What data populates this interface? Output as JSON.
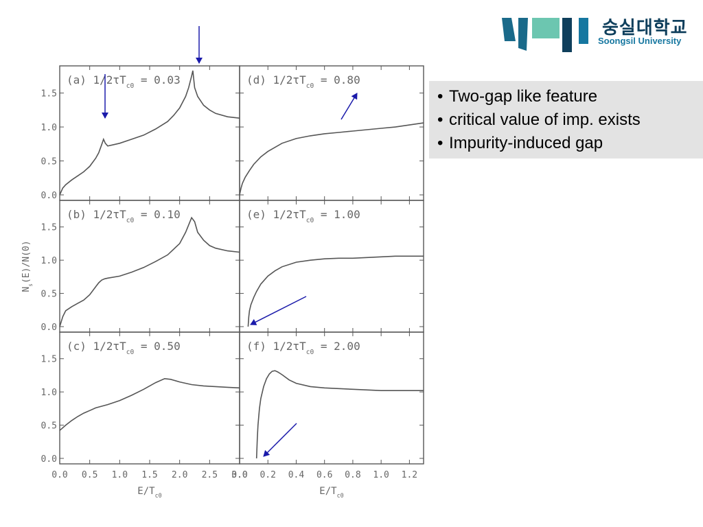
{
  "logo": {
    "name_korean": "숭실대학교",
    "name_english": "Soongsil University",
    "colors": {
      "dark": "#0f3f5c",
      "teal": "#1a6a8a",
      "mint": "#6cc6b0",
      "blue": "#1677a0"
    }
  },
  "bullets": [
    "Two-gap like feature",
    "critical value of imp. exists",
    "Impurity-induced gap"
  ],
  "colors": {
    "arrow": "#1a1aaa",
    "curve": "#555555",
    "bullet_box": "#e3e3e3"
  },
  "chart_data": {
    "type": "line",
    "ylabel": "N_s(E)/N(0)",
    "yticks": [
      "0.0",
      "0.5",
      "1.0",
      "1.5"
    ],
    "ylim": [
      0,
      1.9
    ],
    "left_column": {
      "xlabel": "E/T_c0",
      "xlim": [
        0,
        3.0
      ],
      "xticks": [
        "0.0",
        "0.5",
        "1.0",
        "1.5",
        "2.0",
        "2.5",
        "3.0"
      ]
    },
    "right_column": {
      "xlabel": "E/T_c0",
      "xlim": [
        0,
        1.3
      ],
      "xticks": [
        "0.0",
        "0.2",
        "0.4",
        "0.6",
        "0.8",
        "1.0",
        "1.2"
      ]
    },
    "panels": [
      {
        "id": "a",
        "col": "left",
        "row": 0,
        "label": "(a) 1/2τT_c0 = 0.03",
        "x": [
          0.0,
          0.05,
          0.1,
          0.2,
          0.3,
          0.4,
          0.5,
          0.6,
          0.65,
          0.7,
          0.73,
          0.76,
          0.8,
          0.9,
          1.0,
          1.2,
          1.4,
          1.6,
          1.8,
          1.9,
          2.0,
          2.1,
          2.15,
          2.2,
          2.22,
          2.25,
          2.3,
          2.4,
          2.5,
          2.6,
          2.8,
          3.0
        ],
        "y": [
          0.0,
          0.1,
          0.15,
          0.22,
          0.28,
          0.34,
          0.42,
          0.54,
          0.62,
          0.74,
          0.82,
          0.76,
          0.72,
          0.74,
          0.76,
          0.82,
          0.88,
          0.97,
          1.08,
          1.17,
          1.28,
          1.45,
          1.58,
          1.75,
          1.83,
          1.58,
          1.45,
          1.32,
          1.25,
          1.2,
          1.15,
          1.13
        ]
      },
      {
        "id": "b",
        "col": "left",
        "row": 1,
        "label": "(b) 1/2τT_c0 = 0.10",
        "x": [
          0.0,
          0.05,
          0.1,
          0.2,
          0.3,
          0.4,
          0.5,
          0.6,
          0.65,
          0.7,
          0.75,
          0.8,
          1.0,
          1.2,
          1.4,
          1.6,
          1.8,
          2.0,
          2.1,
          2.2,
          2.25,
          2.3,
          2.4,
          2.5,
          2.6,
          2.8,
          3.0
        ],
        "y": [
          0.0,
          0.15,
          0.24,
          0.3,
          0.35,
          0.4,
          0.48,
          0.6,
          0.66,
          0.7,
          0.72,
          0.73,
          0.76,
          0.82,
          0.89,
          0.98,
          1.08,
          1.25,
          1.42,
          1.64,
          1.58,
          1.42,
          1.3,
          1.22,
          1.18,
          1.14,
          1.12
        ]
      },
      {
        "id": "c",
        "col": "left",
        "row": 2,
        "label": "(c) 1/2τT_c0 = 0.50",
        "x": [
          0.0,
          0.1,
          0.2,
          0.3,
          0.4,
          0.5,
          0.6,
          0.8,
          1.0,
          1.2,
          1.4,
          1.6,
          1.75,
          1.85,
          2.0,
          2.2,
          2.4,
          2.6,
          2.8,
          3.0
        ],
        "y": [
          0.42,
          0.5,
          0.57,
          0.63,
          0.68,
          0.72,
          0.76,
          0.81,
          0.87,
          0.95,
          1.04,
          1.14,
          1.2,
          1.19,
          1.15,
          1.11,
          1.09,
          1.08,
          1.07,
          1.06
        ]
      },
      {
        "id": "d",
        "col": "right",
        "row": 0,
        "label": "(d) 1/2τT_c0 = 0.80",
        "x": [
          0.0,
          0.01,
          0.02,
          0.04,
          0.07,
          0.1,
          0.15,
          0.2,
          0.3,
          0.4,
          0.5,
          0.6,
          0.7,
          0.8,
          0.9,
          1.0,
          1.1,
          1.2,
          1.3
        ],
        "y": [
          0.0,
          0.1,
          0.17,
          0.26,
          0.36,
          0.45,
          0.56,
          0.64,
          0.76,
          0.83,
          0.87,
          0.9,
          0.92,
          0.94,
          0.96,
          0.98,
          1.0,
          1.03,
          1.06
        ]
      },
      {
        "id": "e",
        "col": "right",
        "row": 1,
        "label": "(e) 1/2τT_c0 = 1.00",
        "x": [
          0.06,
          0.065,
          0.07,
          0.08,
          0.1,
          0.12,
          0.15,
          0.2,
          0.25,
          0.3,
          0.4,
          0.5,
          0.6,
          0.7,
          0.8,
          0.9,
          1.0,
          1.1,
          1.2,
          1.3
        ],
        "y": [
          0.0,
          0.15,
          0.24,
          0.33,
          0.44,
          0.53,
          0.64,
          0.76,
          0.84,
          0.9,
          0.97,
          1.0,
          1.02,
          1.03,
          1.03,
          1.04,
          1.05,
          1.06,
          1.06,
          1.06
        ]
      },
      {
        "id": "f",
        "col": "right",
        "row": 2,
        "label": "(f) 1/2τT_c0 = 2.00",
        "x": [
          0.12,
          0.125,
          0.13,
          0.14,
          0.15,
          0.17,
          0.19,
          0.21,
          0.23,
          0.25,
          0.27,
          0.3,
          0.35,
          0.4,
          0.5,
          0.6,
          0.8,
          1.0,
          1.2,
          1.3
        ],
        "y": [
          0.0,
          0.3,
          0.5,
          0.75,
          0.9,
          1.08,
          1.2,
          1.27,
          1.31,
          1.32,
          1.3,
          1.26,
          1.18,
          1.13,
          1.08,
          1.06,
          1.04,
          1.02,
          1.02,
          1.02
        ]
      }
    ],
    "annotation_arrows": [
      {
        "description": "arrow pointing down at the peak in panel a"
      },
      {
        "description": "arrow pointing down at the small kink in panel a"
      },
      {
        "description": "arrow pointing up-right in panel d"
      },
      {
        "description": "arrow pointing down-left at the gap edge in panel e"
      },
      {
        "description": "arrow pointing down-left at the gap edge in panel f"
      }
    ]
  }
}
